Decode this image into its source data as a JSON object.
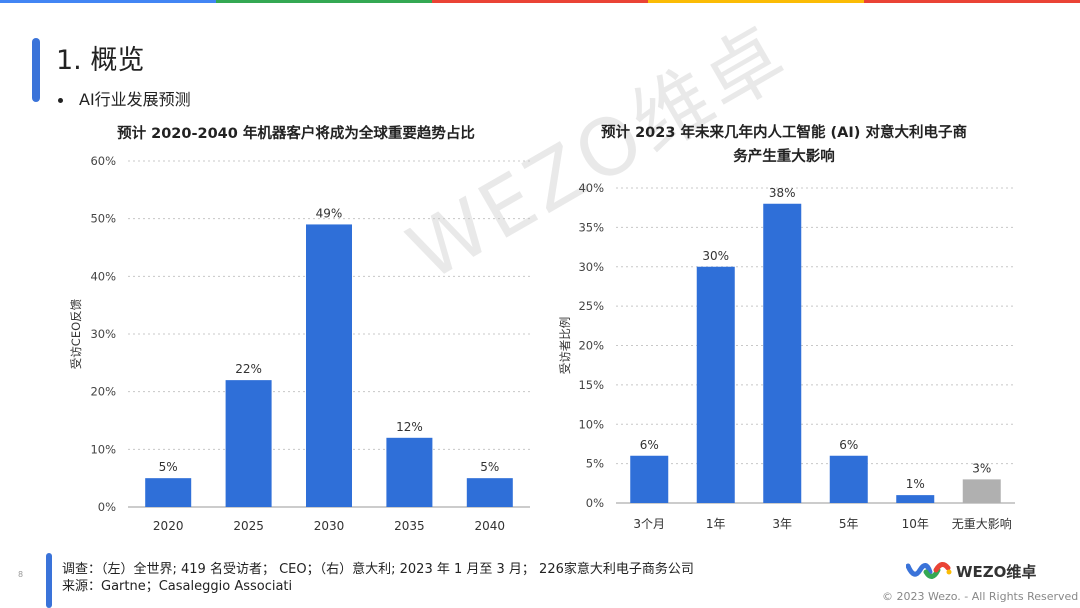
{
  "header": {
    "title": "1. 概览",
    "bullet": "AI行业发展预测"
  },
  "top_bar_colors": [
    "#4285f4",
    "#34a853",
    "#ea4335",
    "#fbbc05",
    "#ea4335"
  ],
  "watermark": "WEZO维卓",
  "colors": {
    "bar": "#2f6fd8",
    "bar_muted": "#b0b0b0",
    "grid": "#c8c8c8"
  },
  "chart_data": [
    {
      "type": "bar",
      "title_lines": [
        "预计 2020-2040 年机器客户将成为全球重要趋势占比"
      ],
      "ylabel": "受访CEO反馈",
      "categories": [
        "2020",
        "2025",
        "2030",
        "2035",
        "2040"
      ],
      "values": [
        5,
        22,
        49,
        12,
        5
      ],
      "value_labels": [
        "5%",
        "22%",
        "49%",
        "12%",
        "5%"
      ],
      "ylim": [
        0,
        60
      ],
      "yticks": [
        0,
        10,
        20,
        30,
        40,
        50,
        60
      ],
      "ytick_labels": [
        "0%",
        "10%",
        "20%",
        "30%",
        "40%",
        "50%",
        "60%"
      ],
      "grid": true
    },
    {
      "type": "bar",
      "title_lines": [
        "预计 2023 年未来几年内人工智能 (AI) 对意大利电子商",
        "务产生重大影响"
      ],
      "ylabel": "受访者比例",
      "categories": [
        "3个月",
        "1年",
        "3年",
        "5年",
        "10年",
        "无重大影响"
      ],
      "values": [
        6,
        30,
        38,
        6,
        1,
        3
      ],
      "value_labels": [
        "6%",
        "30%",
        "38%",
        "6%",
        "1%",
        "3%"
      ],
      "muted_index": 5,
      "ylim": [
        0,
        40
      ],
      "yticks": [
        0,
        5,
        10,
        15,
        20,
        25,
        30,
        35,
        40
      ],
      "ytick_labels": [
        "0%",
        "5%",
        "10%",
        "15%",
        "20%",
        "25%",
        "30%",
        "35%",
        "40%"
      ],
      "grid": true
    }
  ],
  "footer": {
    "survey": "调查：（左）全世界; 419 名受访者； CEO；（右）意大利; 2023 年 1 月至 3 月； 226家意大利电子商务公司",
    "source": "来源：Gartne；Casaleggio Associati",
    "page": "8",
    "logo_text": "WEZO维卓",
    "copyright": "© 2023 Wezo. - All Rights Reserved"
  }
}
